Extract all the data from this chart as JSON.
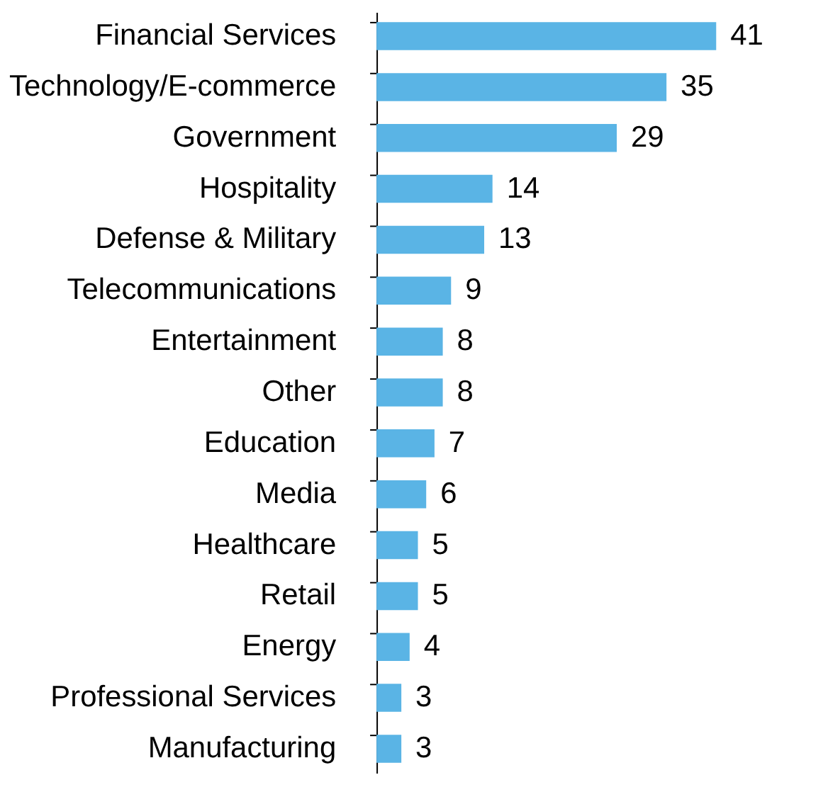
{
  "chart_data": {
    "type": "bar",
    "orientation": "horizontal",
    "data_labels": true,
    "grid": false,
    "categories": [
      "Financial Services",
      "Technology/E-commerce",
      "Government",
      "Hospitality",
      "Defense & Military",
      "Telecommunications",
      "Entertainment",
      "Other",
      "Education",
      "Media",
      "Healthcare",
      "Retail",
      "Energy",
      "Professional Services",
      "Manufacturing"
    ],
    "values": [
      41,
      35,
      29,
      14,
      13,
      9,
      8,
      8,
      7,
      6,
      5,
      5,
      4,
      3,
      3
    ],
    "color": "#5ab4e5"
  }
}
